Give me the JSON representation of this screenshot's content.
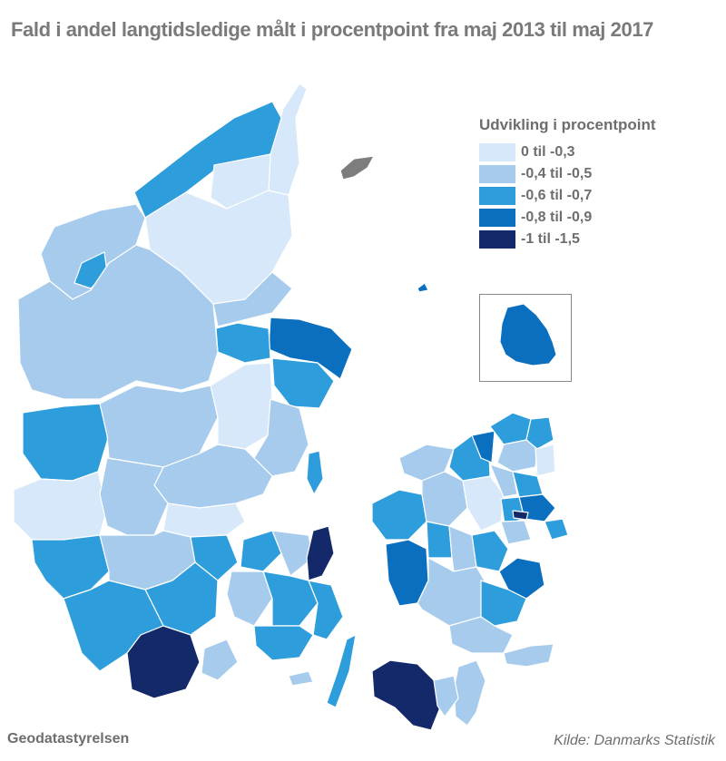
{
  "title": "Fald i andel langtidsledige målt i procentpoint fra maj 2013 til maj 2017",
  "legend": {
    "title": "Udvikling i procentpoint",
    "items": [
      {
        "label": "0 til -0,3",
        "color": "#d6e8f9"
      },
      {
        "label": "-0,4 til -0,5",
        "color": "#a7cbec"
      },
      {
        "label": "-0,6 til -0,7",
        "color": "#2e9ddb"
      },
      {
        "label": "-0,8 til -0,9",
        "color": "#0a6fbf"
      },
      {
        "label": "-1 til -1,5",
        "color": "#13296a"
      }
    ]
  },
  "no_data_color": "#7d7d7d",
  "footer": {
    "left": "Geodatastyrelsen",
    "right": "Kilde: Danmarks Statistik"
  }
}
